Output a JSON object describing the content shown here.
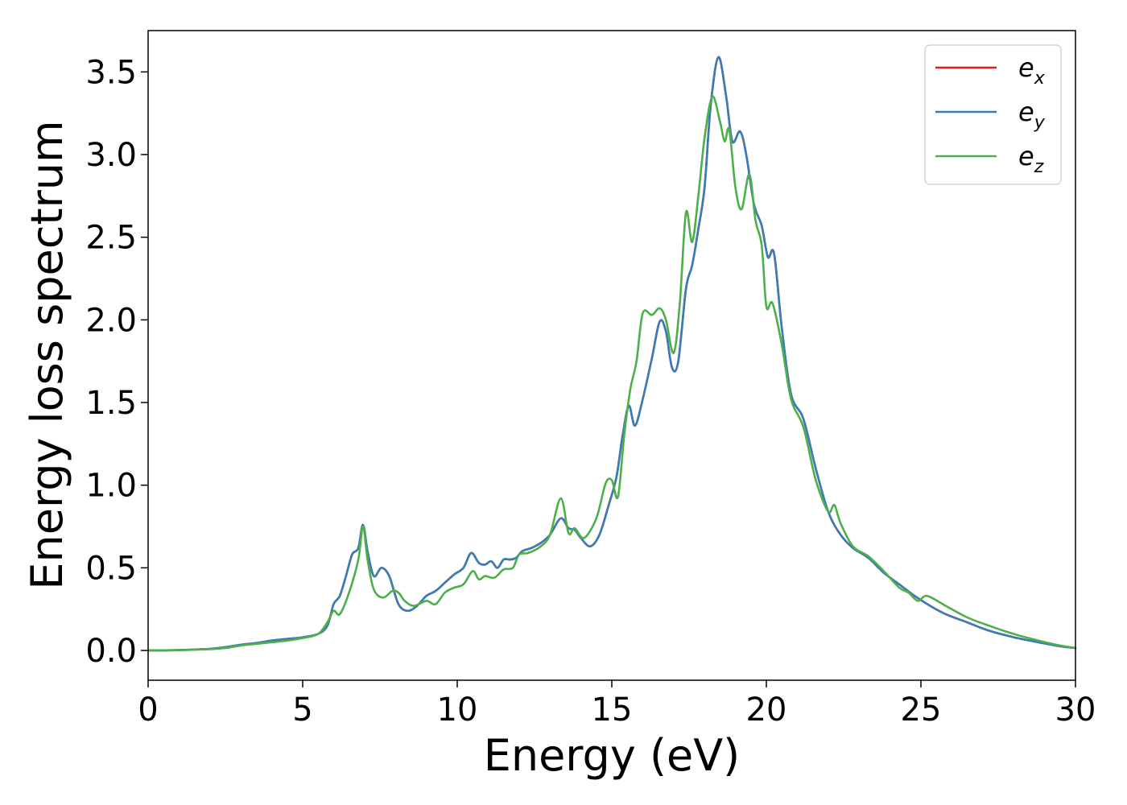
{
  "chart_data": {
    "type": "line",
    "title": "",
    "xlabel": "Energy (eV)",
    "ylabel": "Energy loss spectrum",
    "xlim": [
      0,
      30
    ],
    "ylim": [
      -0.18,
      3.75
    ],
    "xticks": [
      0,
      5,
      10,
      15,
      20,
      25,
      30
    ],
    "xtick_labels": [
      "0",
      "5",
      "10",
      "15",
      "20",
      "25",
      "30"
    ],
    "yticks": [
      0.0,
      0.5,
      1.0,
      1.5,
      2.0,
      2.5,
      3.0,
      3.5
    ],
    "ytick_labels": [
      "0.0",
      "0.5",
      "1.0",
      "1.5",
      "2.0",
      "2.5",
      "3.0",
      "3.5"
    ],
    "grid": false,
    "legend_position": "top-right",
    "series": [
      {
        "name": "e",
        "sub": "x",
        "color": "#e41a1c",
        "x": [
          0,
          1,
          2,
          2.5,
          3,
          3.5,
          4,
          4.5,
          5,
          5.5,
          5.8,
          6.0,
          6.2,
          6.4,
          6.6,
          6.8,
          6.95,
          7.1,
          7.3,
          7.55,
          7.8,
          8.1,
          8.4,
          8.7,
          9.0,
          9.3,
          9.6,
          9.9,
          10.2,
          10.45,
          10.7,
          10.9,
          11.1,
          11.3,
          11.5,
          11.7,
          11.9,
          12.1,
          12.4,
          12.7,
          13.0,
          13.35,
          13.6,
          13.8,
          14.0,
          14.3,
          14.6,
          14.9,
          15.15,
          15.35,
          15.55,
          15.75,
          16.0,
          16.3,
          16.55,
          16.75,
          16.95,
          17.15,
          17.4,
          17.6,
          17.8,
          18.0,
          18.2,
          18.45,
          18.7,
          18.9,
          19.15,
          19.35,
          19.6,
          19.85,
          20.05,
          20.25,
          20.5,
          20.8,
          21.2,
          21.6,
          22.0,
          22.4,
          22.8,
          23.3,
          23.8,
          24.3,
          24.8,
          25.3,
          25.8,
          26.5,
          27.2,
          28,
          28.8,
          29.5,
          30
        ],
        "y": [
          0.0,
          0.002,
          0.01,
          0.02,
          0.035,
          0.045,
          0.06,
          0.07,
          0.08,
          0.1,
          0.15,
          0.28,
          0.33,
          0.45,
          0.58,
          0.62,
          0.76,
          0.6,
          0.45,
          0.5,
          0.45,
          0.28,
          0.24,
          0.27,
          0.33,
          0.36,
          0.41,
          0.46,
          0.5,
          0.59,
          0.53,
          0.52,
          0.54,
          0.5,
          0.55,
          0.55,
          0.56,
          0.6,
          0.62,
          0.65,
          0.7,
          0.8,
          0.74,
          0.73,
          0.68,
          0.63,
          0.7,
          0.88,
          1.05,
          1.3,
          1.48,
          1.36,
          1.52,
          1.77,
          1.99,
          1.93,
          1.71,
          1.75,
          2.19,
          2.33,
          2.55,
          2.8,
          3.3,
          3.59,
          3.35,
          3.08,
          3.14,
          3.0,
          2.7,
          2.57,
          2.38,
          2.4,
          1.95,
          1.55,
          1.4,
          1.1,
          0.84,
          0.7,
          0.62,
          0.56,
          0.47,
          0.4,
          0.33,
          0.27,
          0.22,
          0.17,
          0.12,
          0.08,
          0.05,
          0.025,
          0.015
        ]
      },
      {
        "name": "e",
        "sub": "y",
        "color": "#377eb8",
        "x": [
          0,
          1,
          2,
          2.5,
          3,
          3.5,
          4,
          4.5,
          5,
          5.5,
          5.8,
          6.0,
          6.2,
          6.4,
          6.6,
          6.8,
          6.95,
          7.1,
          7.3,
          7.55,
          7.8,
          8.1,
          8.4,
          8.7,
          9.0,
          9.3,
          9.6,
          9.9,
          10.2,
          10.45,
          10.7,
          10.9,
          11.1,
          11.3,
          11.5,
          11.7,
          11.9,
          12.1,
          12.4,
          12.7,
          13.0,
          13.35,
          13.6,
          13.8,
          14.0,
          14.3,
          14.6,
          14.9,
          15.15,
          15.35,
          15.55,
          15.75,
          16.0,
          16.3,
          16.55,
          16.75,
          16.95,
          17.15,
          17.4,
          17.6,
          17.8,
          18.0,
          18.2,
          18.45,
          18.7,
          18.9,
          19.15,
          19.35,
          19.6,
          19.85,
          20.05,
          20.25,
          20.5,
          20.8,
          21.2,
          21.6,
          22.0,
          22.4,
          22.8,
          23.3,
          23.8,
          24.3,
          24.8,
          25.3,
          25.8,
          26.5,
          27.2,
          28,
          28.8,
          29.5,
          30
        ],
        "y": [
          0.0,
          0.002,
          0.01,
          0.02,
          0.035,
          0.045,
          0.06,
          0.07,
          0.08,
          0.1,
          0.15,
          0.28,
          0.33,
          0.45,
          0.58,
          0.62,
          0.76,
          0.6,
          0.45,
          0.5,
          0.45,
          0.28,
          0.24,
          0.27,
          0.33,
          0.36,
          0.41,
          0.46,
          0.5,
          0.59,
          0.53,
          0.52,
          0.54,
          0.5,
          0.55,
          0.55,
          0.56,
          0.6,
          0.62,
          0.65,
          0.7,
          0.8,
          0.74,
          0.73,
          0.68,
          0.63,
          0.7,
          0.88,
          1.05,
          1.3,
          1.48,
          1.36,
          1.52,
          1.77,
          1.99,
          1.93,
          1.71,
          1.75,
          2.19,
          2.33,
          2.55,
          2.8,
          3.3,
          3.59,
          3.35,
          3.08,
          3.14,
          3.0,
          2.7,
          2.57,
          2.38,
          2.4,
          1.95,
          1.55,
          1.4,
          1.1,
          0.84,
          0.7,
          0.62,
          0.56,
          0.47,
          0.4,
          0.33,
          0.27,
          0.22,
          0.17,
          0.12,
          0.08,
          0.05,
          0.025,
          0.015
        ]
      },
      {
        "name": "e",
        "sub": "z",
        "color": "#4daf4a",
        "x": [
          0,
          1,
          2,
          2.5,
          3,
          3.5,
          4,
          4.5,
          5,
          5.5,
          5.8,
          6.0,
          6.2,
          6.5,
          6.8,
          6.95,
          7.1,
          7.3,
          7.6,
          7.9,
          8.1,
          8.3,
          8.6,
          9.0,
          9.3,
          9.6,
          9.9,
          10.2,
          10.5,
          10.7,
          10.9,
          11.2,
          11.5,
          11.8,
          12.0,
          12.3,
          12.7,
          13.0,
          13.35,
          13.6,
          13.8,
          14.1,
          14.5,
          14.8,
          15.0,
          15.2,
          15.4,
          15.6,
          15.8,
          16.0,
          16.3,
          16.55,
          16.75,
          17.0,
          17.2,
          17.4,
          17.6,
          17.8,
          18.0,
          18.25,
          18.5,
          18.65,
          18.8,
          19.0,
          19.2,
          19.45,
          19.65,
          19.85,
          20.0,
          20.2,
          20.5,
          20.8,
          21.2,
          21.6,
          22.0,
          22.2,
          22.4,
          22.8,
          23.3,
          23.8,
          24.3,
          24.6,
          24.9,
          25.2,
          25.8,
          26.5,
          27.2,
          28,
          28.8,
          29.5,
          30
        ],
        "y": [
          0.0,
          0.002,
          0.008,
          0.015,
          0.03,
          0.04,
          0.05,
          0.06,
          0.075,
          0.1,
          0.17,
          0.24,
          0.22,
          0.35,
          0.55,
          0.75,
          0.55,
          0.37,
          0.32,
          0.36,
          0.35,
          0.3,
          0.27,
          0.3,
          0.28,
          0.35,
          0.38,
          0.4,
          0.48,
          0.43,
          0.45,
          0.44,
          0.49,
          0.5,
          0.58,
          0.59,
          0.63,
          0.7,
          0.92,
          0.71,
          0.74,
          0.68,
          0.8,
          1.01,
          1.03,
          0.93,
          1.3,
          1.58,
          1.75,
          2.04,
          2.03,
          2.07,
          2.0,
          1.8,
          2.1,
          2.65,
          2.47,
          2.75,
          3.1,
          3.35,
          3.2,
          3.08,
          3.15,
          2.8,
          2.67,
          2.88,
          2.6,
          2.45,
          2.08,
          2.1,
          1.85,
          1.52,
          1.35,
          1.03,
          0.84,
          0.88,
          0.77,
          0.63,
          0.57,
          0.48,
          0.38,
          0.35,
          0.3,
          0.33,
          0.27,
          0.2,
          0.15,
          0.1,
          0.06,
          0.03,
          0.015
        ]
      }
    ]
  }
}
